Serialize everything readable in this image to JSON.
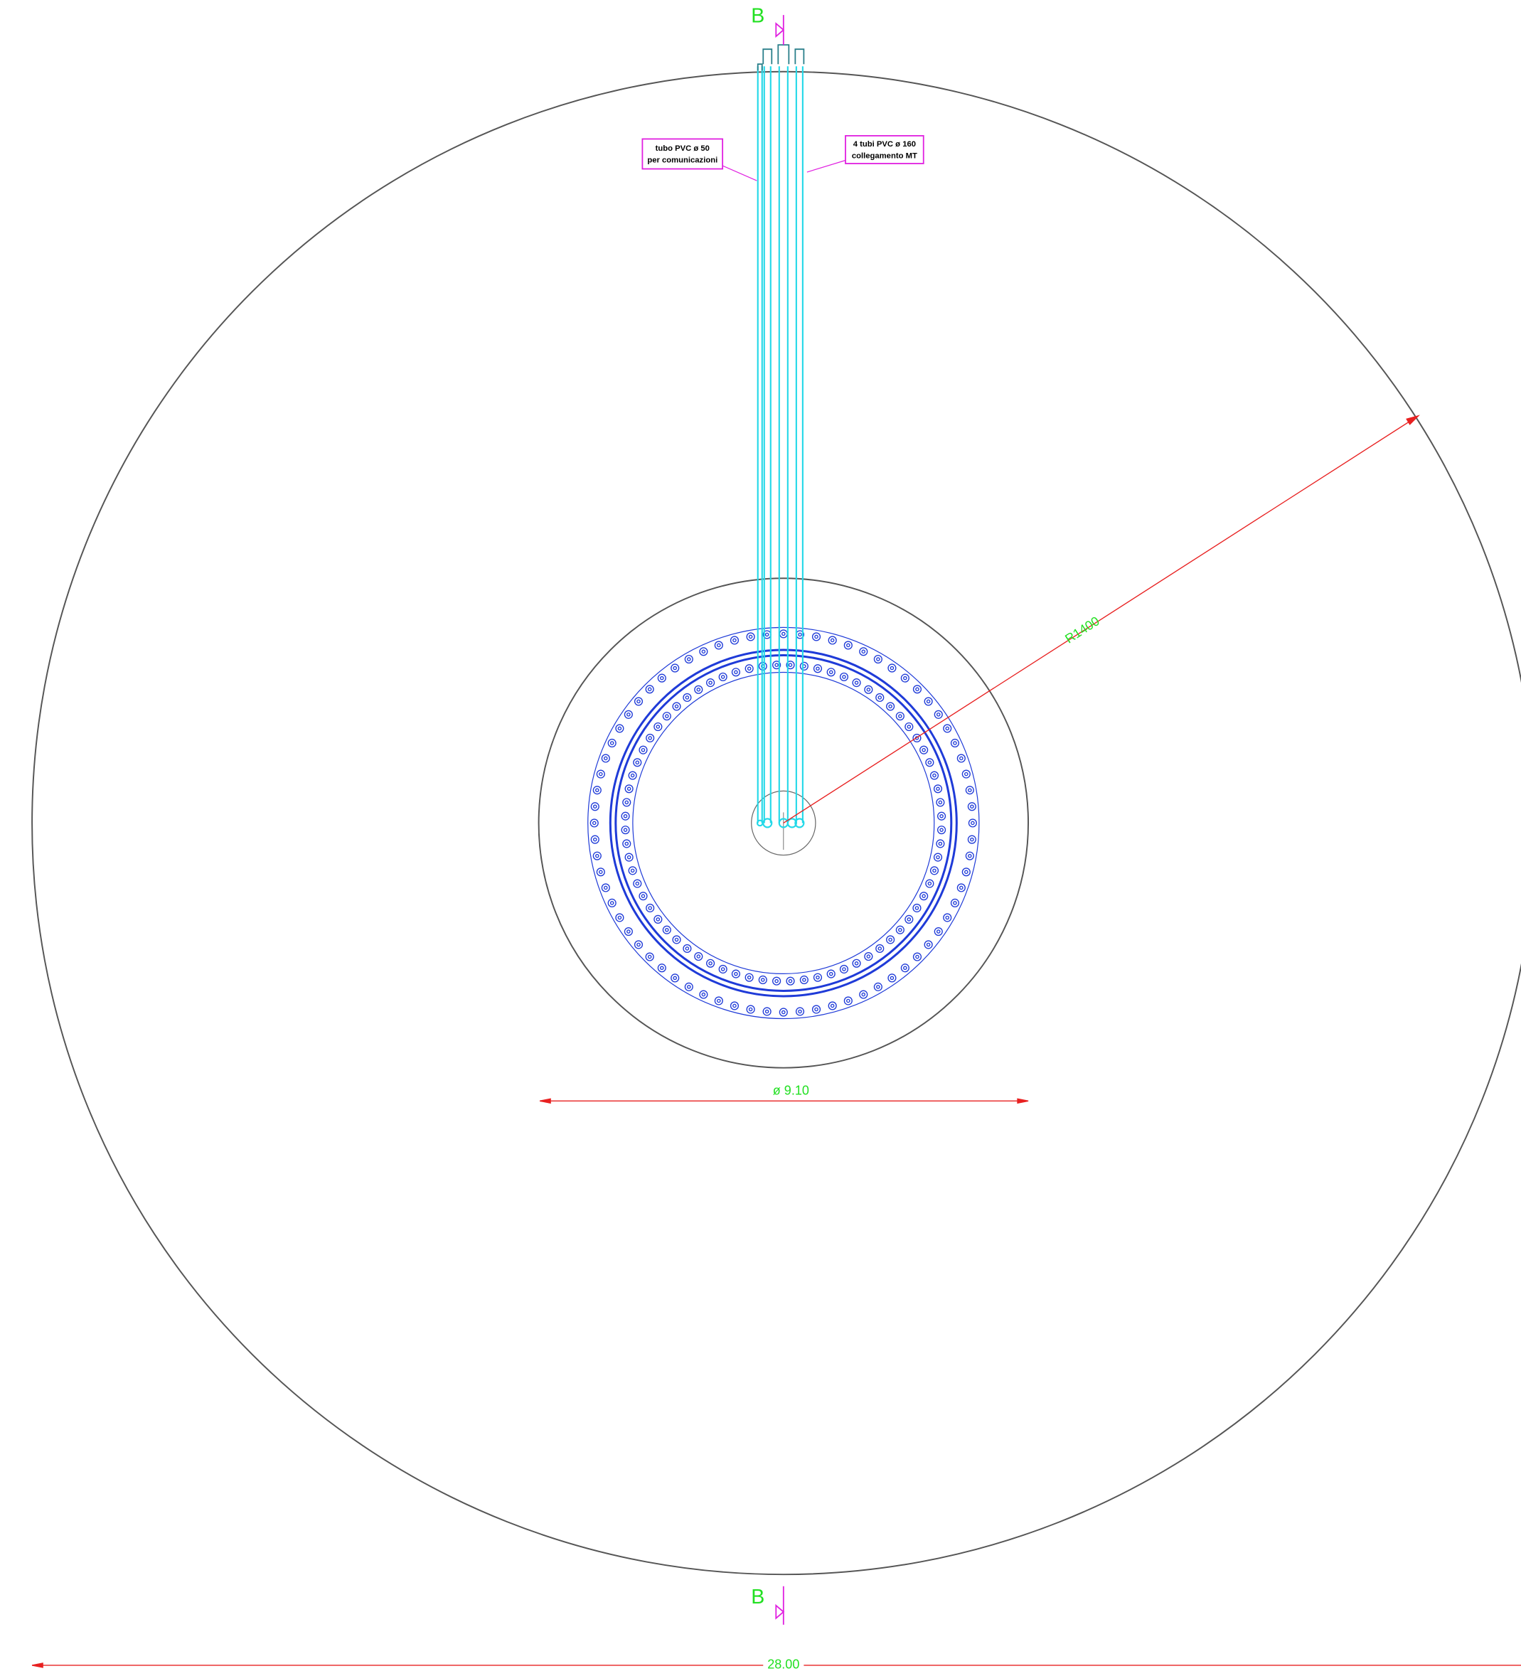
{
  "section_top": "B",
  "section_bottom": "B",
  "label_comm": {
    "line1": "tubo PVC ø 50",
    "line2": "per comunicazioni"
  },
  "label_mt": {
    "line1": "4 tubi PVC ø 160",
    "line2": "collegamento MT"
  },
  "dim_radius": "R1400",
  "dim_inner": "ø 9.10",
  "dim_outer": "28.00"
}
